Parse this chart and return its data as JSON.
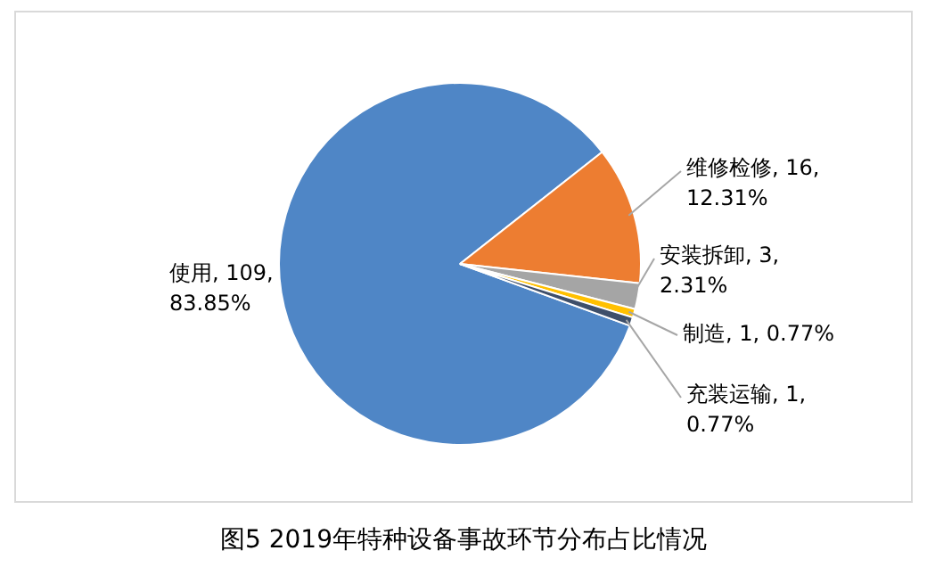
{
  "chart_data": {
    "type": "pie",
    "title": "图5 2019年特种设备事故环节分布占比情况",
    "categories": [
      "使用",
      "维修检修",
      "安装拆卸",
      "制造",
      "充装运输"
    ],
    "values": [
      83.85,
      12.31,
      2.31,
      0.77,
      0.77
    ],
    "value_labels": [
      "109, 83.85%",
      "16, 12.31%",
      "3, 2.31%",
      "1, 0.77%",
      "1, 0.77%"
    ],
    "colors": [
      "#4f86c6",
      "#ed7d31",
      "#a5a5a5",
      "#ffc000",
      "#3e4f6a"
    ],
    "legend": false
  }
}
